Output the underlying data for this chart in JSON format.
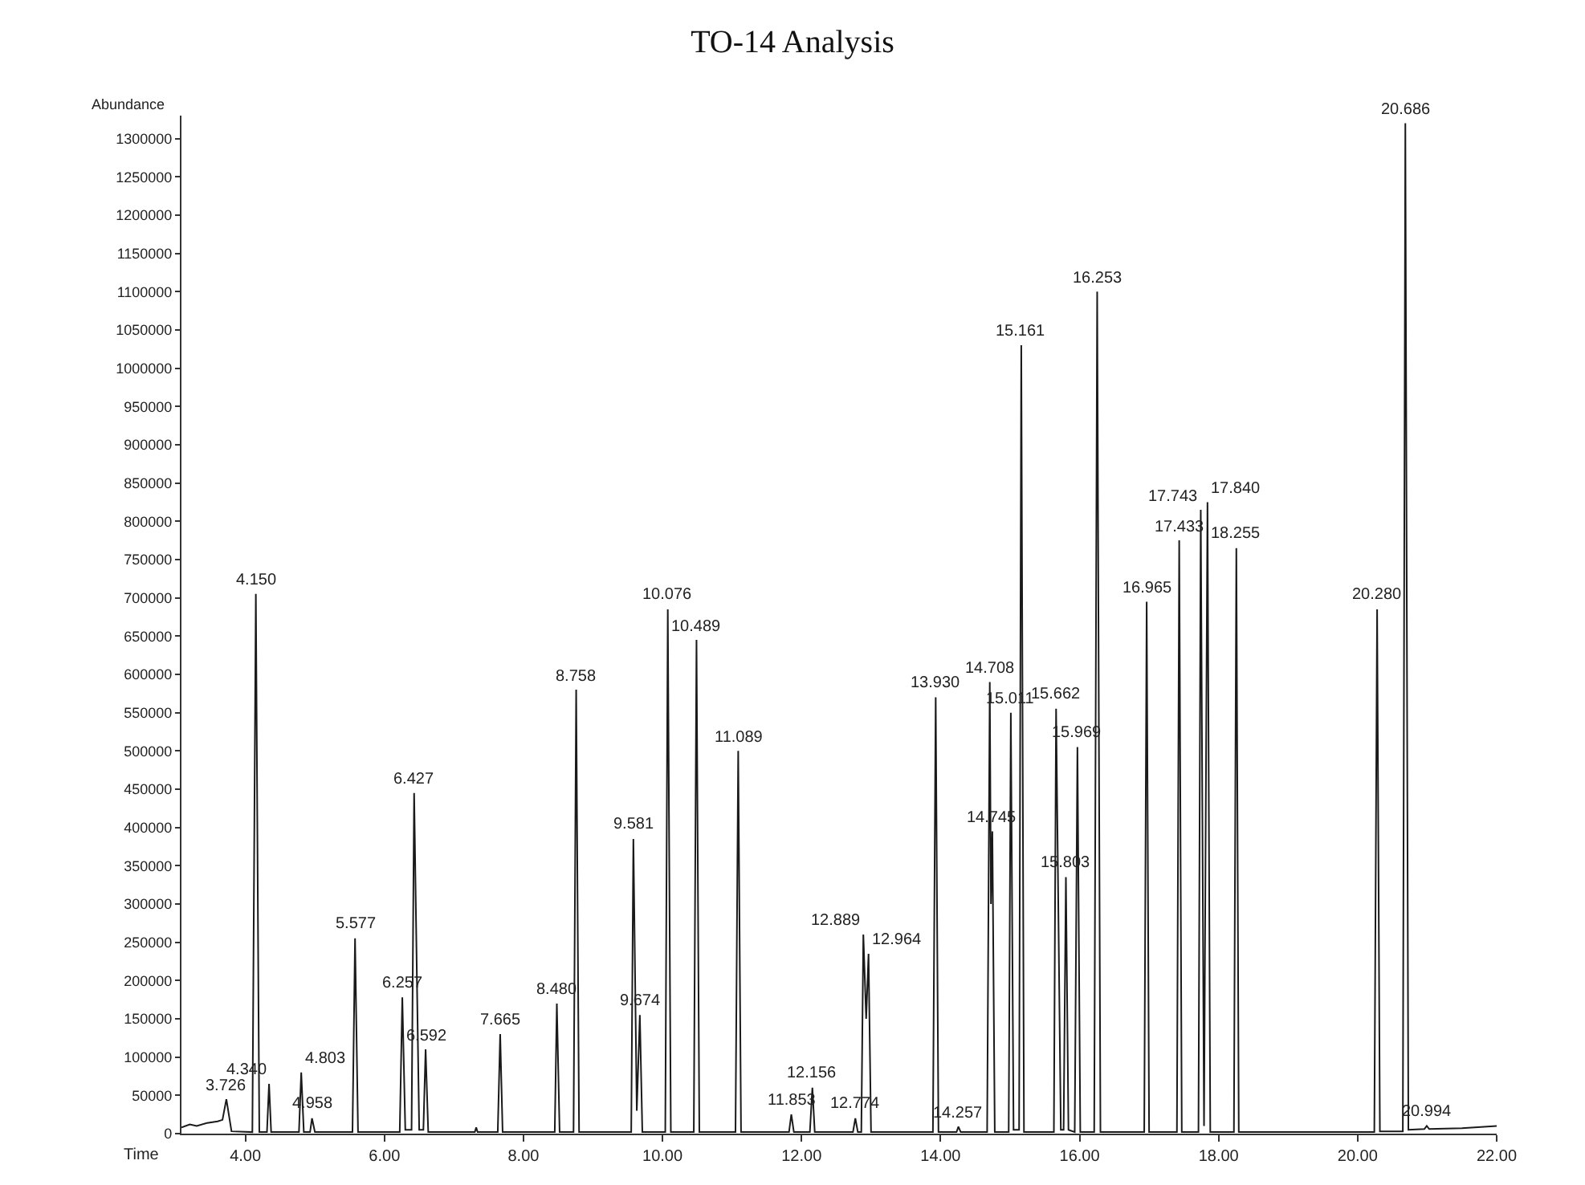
{
  "chart_data": {
    "type": "line",
    "title": "TO-14 Analysis",
    "xlabel": "Time",
    "ylabel": "Abundance",
    "x": [
      3.08,
      3.2,
      3.3,
      3.45,
      3.6,
      3.67,
      3.726,
      3.8,
      4.1,
      4.15,
      4.2,
      4.31,
      4.34,
      4.37,
      4.77,
      4.803,
      4.84,
      4.93,
      4.958,
      5.0,
      5.54,
      5.577,
      5.62,
      6.22,
      6.257,
      6.3,
      6.39,
      6.427,
      6.5,
      6.56,
      6.592,
      6.63,
      7.3,
      7.32,
      7.34,
      7.63,
      7.665,
      7.7,
      8.45,
      8.48,
      8.52,
      8.72,
      8.758,
      8.8,
      9.55,
      9.581,
      9.63,
      9.674,
      9.71,
      10.04,
      10.076,
      10.12,
      10.45,
      10.489,
      10.53,
      11.05,
      11.089,
      11.13,
      11.82,
      11.853,
      11.89,
      12.12,
      12.156,
      12.19,
      12.74,
      12.774,
      12.81,
      12.86,
      12.889,
      12.93,
      12.964,
      13.0,
      13.89,
      13.93,
      13.97,
      14.23,
      14.257,
      14.29,
      14.67,
      14.708,
      14.725,
      14.745,
      14.78,
      14.98,
      15.011,
      15.05,
      15.13,
      15.161,
      15.2,
      15.63,
      15.662,
      15.73,
      15.77,
      15.803,
      15.84,
      15.93,
      15.969,
      16.01,
      16.21,
      16.253,
      16.3,
      16.93,
      16.965,
      17.0,
      17.4,
      17.433,
      17.47,
      17.71,
      17.743,
      17.79,
      17.84,
      17.88,
      18.22,
      18.255,
      18.29,
      20.24,
      20.28,
      20.32,
      20.65,
      20.686,
      20.73,
      20.96,
      20.994,
      21.03,
      21.5,
      22.0
    ],
    "series": [
      {
        "color": "#1a1a1a",
        "values": [
          8000,
          12000,
          10000,
          14000,
          16000,
          18000,
          45000,
          3000,
          2000,
          705000,
          2000,
          2000,
          65000,
          2000,
          2000,
          80000,
          2000,
          2000,
          20000,
          2000,
          2000,
          255000,
          2000,
          2000,
          178000,
          5000,
          5000,
          445000,
          5000,
          5000,
          110000,
          2000,
          2000,
          8000,
          2000,
          2000,
          130000,
          2000,
          2000,
          170000,
          2000,
          2000,
          580000,
          2000,
          2000,
          385000,
          30000,
          155000,
          2000,
          2000,
          685000,
          2000,
          2000,
          645000,
          2000,
          2000,
          500000,
          2000,
          2000,
          25000,
          2000,
          2000,
          60000,
          2000,
          2000,
          20000,
          2000,
          2000,
          260000,
          150000,
          235000,
          2000,
          2000,
          570000,
          2000,
          2000,
          9000,
          2000,
          2000,
          590000,
          300000,
          395000,
          2000,
          2000,
          550000,
          5000,
          5000,
          1030000,
          2000,
          2000,
          555000,
          5000,
          5000,
          335000,
          5000,
          2000,
          505000,
          2000,
          2000,
          1100000,
          2000,
          2000,
          695000,
          2000,
          2000,
          775000,
          2000,
          2000,
          815000,
          10000,
          825000,
          2000,
          2000,
          765000,
          2000,
          2000,
          685000,
          3000,
          3000,
          1320000,
          5000,
          6000,
          10000,
          6000,
          7000,
          10000
        ]
      }
    ],
    "xlim": [
      3.08,
      22.0
    ],
    "ylim": [
      0,
      1330000
    ],
    "xticks": [
      {
        "value": 4,
        "label": "4.00"
      },
      {
        "value": 6,
        "label": "6.00"
      },
      {
        "value": 8,
        "label": "8.00"
      },
      {
        "value": 10,
        "label": "10.00"
      },
      {
        "value": 12,
        "label": "12.00"
      },
      {
        "value": 14,
        "label": "14.00"
      },
      {
        "value": 16,
        "label": "16.00"
      },
      {
        "value": 18,
        "label": "18.00"
      },
      {
        "value": 20,
        "label": "20.00"
      },
      {
        "value": 22,
        "label": "22.00"
      }
    ],
    "yticks": [
      0,
      50000,
      100000,
      150000,
      200000,
      250000,
      300000,
      350000,
      400000,
      450000,
      500000,
      550000,
      600000,
      650000,
      700000,
      750000,
      800000,
      850000,
      900000,
      950000,
      1000000,
      1050000,
      1100000,
      1150000,
      1200000,
      1250000,
      1300000
    ],
    "marker": "none",
    "line_style": "solid",
    "annotations": [
      {
        "text": "3.726",
        "x": 3.726,
        "y": 45000
      },
      {
        "text": "4.150",
        "x": 4.15,
        "y": 705000
      },
      {
        "text": "4.340",
        "x": 4.34,
        "y": 65000
      },
      {
        "text": "4.803",
        "x": 4.803,
        "y": 80000
      },
      {
        "text": "4.958",
        "x": 4.958,
        "y": 20000
      },
      {
        "text": "5.577",
        "x": 5.577,
        "y": 255000
      },
      {
        "text": "6.257",
        "x": 6.257,
        "y": 178000
      },
      {
        "text": "6.427",
        "x": 6.427,
        "y": 445000
      },
      {
        "text": "6.592",
        "x": 6.592,
        "y": 110000
      },
      {
        "text": "7.665",
        "x": 7.665,
        "y": 130000
      },
      {
        "text": "8.480",
        "x": 8.48,
        "y": 170000
      },
      {
        "text": "8.758",
        "x": 8.758,
        "y": 580000
      },
      {
        "text": "9.581",
        "x": 9.581,
        "y": 385000
      },
      {
        "text": "9.674",
        "x": 9.674,
        "y": 155000
      },
      {
        "text": "10.076",
        "x": 10.076,
        "y": 685000
      },
      {
        "text": "10.489",
        "x": 10.489,
        "y": 645000
      },
      {
        "text": "11.089",
        "x": 11.089,
        "y": 500000
      },
      {
        "text": "11.853",
        "x": 11.853,
        "y": 25000
      },
      {
        "text": "12.156",
        "x": 12.156,
        "y": 60000
      },
      {
        "text": "12.774",
        "x": 12.774,
        "y": 20000
      },
      {
        "text": "12.889",
        "x": 12.889,
        "y": 260000
      },
      {
        "text": "12.964",
        "x": 12.964,
        "y": 235000
      },
      {
        "text": "13.930",
        "x": 13.93,
        "y": 570000
      },
      {
        "text": "14.257",
        "x": 14.257,
        "y": 9000
      },
      {
        "text": "14.708",
        "x": 14.708,
        "y": 590000
      },
      {
        "text": "14.745",
        "x": 14.745,
        "y": 395000
      },
      {
        "text": "15.011",
        "x": 15.011,
        "y": 550000
      },
      {
        "text": "15.161",
        "x": 15.161,
        "y": 1030000
      },
      {
        "text": "15.662",
        "x": 15.662,
        "y": 555000
      },
      {
        "text": "15.803",
        "x": 15.803,
        "y": 335000
      },
      {
        "text": "15.969",
        "x": 15.969,
        "y": 505000
      },
      {
        "text": "16.253",
        "x": 16.253,
        "y": 1100000
      },
      {
        "text": "16.965",
        "x": 16.965,
        "y": 695000
      },
      {
        "text": "17.433",
        "x": 17.433,
        "y": 775000
      },
      {
        "text": "17.743",
        "x": 17.743,
        "y": 815000
      },
      {
        "text": "17.840",
        "x": 17.84,
        "y": 825000
      },
      {
        "text": "18.255",
        "x": 18.255,
        "y": 765000
      },
      {
        "text": "20.280",
        "x": 20.28,
        "y": 685000
      },
      {
        "text": "20.686",
        "x": 20.686,
        "y": 1320000
      },
      {
        "text": "20.994",
        "x": 20.994,
        "y": 10000
      }
    ]
  }
}
